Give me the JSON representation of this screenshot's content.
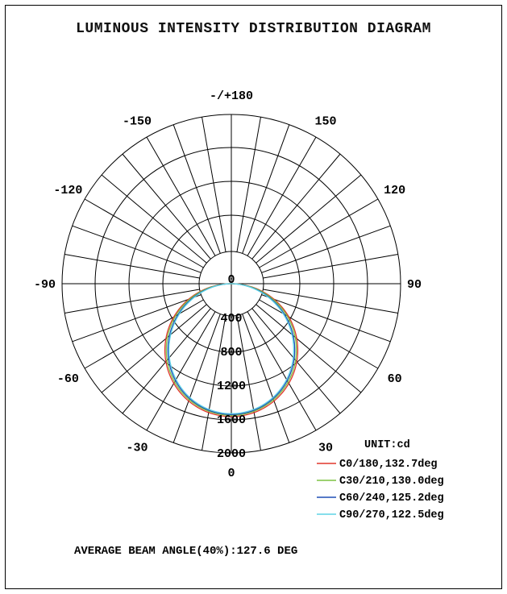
{
  "title": "LUMINOUS INTENSITY DISTRIBUTION DIAGRAM",
  "footer": "AVERAGE BEAM ANGLE(40%):127.6 DEG",
  "chart_data": {
    "type": "polar",
    "title": "LUMINOUS INTENSITY DISTRIBUTION DIAGRAM",
    "unit_label": "UNIT:cd",
    "radial_ticks": [
      0,
      400,
      800,
      1200,
      1600,
      2000
    ],
    "radial_range": [
      0,
      2000
    ],
    "angle_labels": [
      {
        "deg": 180,
        "text": "-/+180"
      },
      {
        "deg": -150,
        "text": "-150"
      },
      {
        "deg": 150,
        "text": "150"
      },
      {
        "deg": -120,
        "text": "-120"
      },
      {
        "deg": 120,
        "text": "120"
      },
      {
        "deg": -90,
        "text": "-90"
      },
      {
        "deg": 90,
        "text": "90"
      },
      {
        "deg": -60,
        "text": "-60"
      },
      {
        "deg": 60,
        "text": "60"
      },
      {
        "deg": -30,
        "text": "-30"
      },
      {
        "deg": 30,
        "text": "30"
      },
      {
        "deg": 0,
        "text": "0"
      }
    ],
    "grid": true,
    "legend_position": "bottom-right",
    "series": [
      {
        "name": "C0/180,132.7deg",
        "color": "#e0362c",
        "max_cd": 1570,
        "beam_deg": 132.7
      },
      {
        "name": "C30/210,130.0deg",
        "color": "#7dc242",
        "max_cd": 1555,
        "beam_deg": 130.0
      },
      {
        "name": "C60/240,125.2deg",
        "color": "#1f4fb5",
        "max_cd": 1545,
        "beam_deg": 125.2
      },
      {
        "name": "C90/270,122.5deg",
        "color": "#5fd3e6",
        "max_cd": 1535,
        "beam_deg": 122.5
      }
    ]
  }
}
